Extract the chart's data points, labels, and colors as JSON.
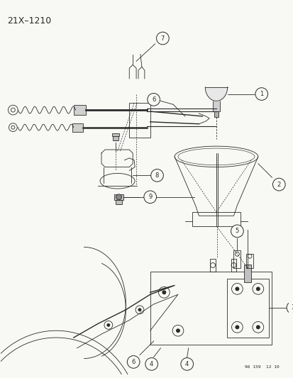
{
  "title": "21X–1210",
  "background_color": "#f5f5f0",
  "line_color": "#2a2a2a",
  "fig_width": 4.14,
  "fig_height": 5.33,
  "dpi": 100,
  "watermark": "96 159  12 10",
  "gray": "#888888",
  "light_gray": "#cccccc"
}
